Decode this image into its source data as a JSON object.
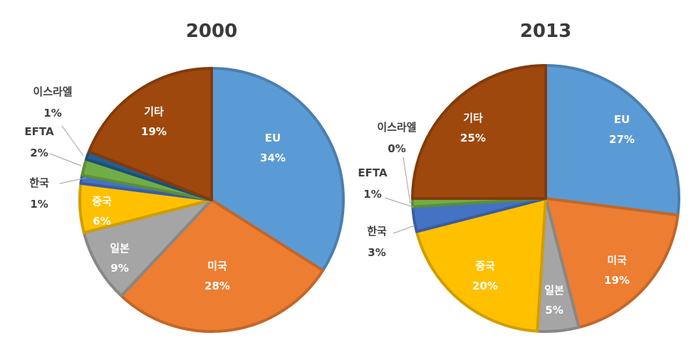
{
  "chart_data": [
    {
      "type": "pie",
      "title": "2000",
      "slices": [
        {
          "label": "EU",
          "value": 34,
          "value_text": "34%",
          "color": "#5b9bd5"
        },
        {
          "label": "미국",
          "value": 28,
          "value_text": "28%",
          "color": "#ed7d31"
        },
        {
          "label": "일본",
          "value": 9,
          "value_text": "9%",
          "color": "#a5a5a5"
        },
        {
          "label": "중국",
          "value": 6,
          "value_text": "6%",
          "color": "#ffc000"
        },
        {
          "label": "한국",
          "value": 1,
          "value_text": "1%",
          "color": "#4472c4"
        },
        {
          "label": "EFTA",
          "value": 2,
          "value_text": "2%",
          "color": "#70ad47"
        },
        {
          "label": "이스라엘",
          "value": 1,
          "value_text": "1%",
          "color": "#255e91"
        },
        {
          "label": "기타",
          "value": 19,
          "value_text": "19%",
          "color": "#9e480e"
        }
      ]
    },
    {
      "type": "pie",
      "title": "2013",
      "slices": [
        {
          "label": "EU",
          "value": 27,
          "value_text": "27%",
          "color": "#5b9bd5"
        },
        {
          "label": "미국",
          "value": 19,
          "value_text": "19%",
          "color": "#ed7d31"
        },
        {
          "label": "일본",
          "value": 5,
          "value_text": "5%",
          "color": "#a5a5a5"
        },
        {
          "label": "중국",
          "value": 20,
          "value_text": "20%",
          "color": "#ffc000"
        },
        {
          "label": "한국",
          "value": 3,
          "value_text": "3%",
          "color": "#4472c4"
        },
        {
          "label": "EFTA",
          "value": 1,
          "value_text": "1%",
          "color": "#70ad47"
        },
        {
          "label": "이스라엘",
          "value": 0,
          "value_text": "0%",
          "color": "#255e91"
        },
        {
          "label": "기타",
          "value": 25,
          "value_text": "25%",
          "color": "#9e480e"
        }
      ]
    }
  ]
}
